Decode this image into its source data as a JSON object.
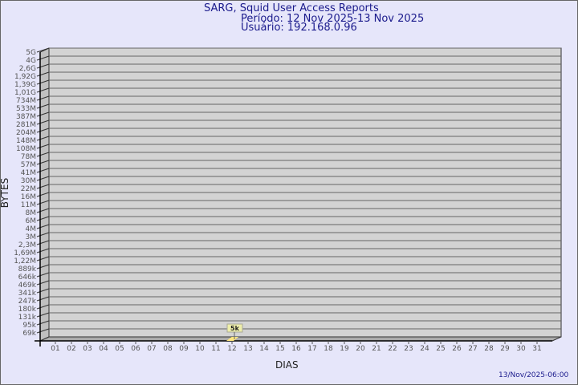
{
  "chart_data": {
    "type": "bar",
    "title": "SARG, Squid User Access Reports",
    "subtitle_period": "Período: 12 Nov 2025-13 Nov 2025",
    "subtitle_user": "Usuário: 192.168.0.96",
    "xlabel": "DIAS",
    "ylabel": "BYTES",
    "y_scale": "log",
    "y_tick_labels": [
      "5G",
      "4G",
      "2,6G",
      "1,92G",
      "1,39G",
      "1,01G",
      "734M",
      "533M",
      "387M",
      "281M",
      "204M",
      "148M",
      "108M",
      "78M",
      "57M",
      "41M",
      "30M",
      "22M",
      "16M",
      "11M",
      "8M",
      "6M",
      "4M",
      "3M",
      "2,3M",
      "1,69M",
      "1,22M",
      "889k",
      "646k",
      "469k",
      "341k",
      "247k",
      "180k",
      "131k",
      "95k",
      "69k"
    ],
    "categories": [
      "01",
      "02",
      "03",
      "04",
      "05",
      "06",
      "07",
      "08",
      "09",
      "10",
      "11",
      "12",
      "13",
      "14",
      "15",
      "16",
      "17",
      "18",
      "19",
      "20",
      "21",
      "22",
      "23",
      "24",
      "25",
      "26",
      "27",
      "28",
      "29",
      "30",
      "31"
    ],
    "bars": [
      {
        "category": "12",
        "value": 5000,
        "label": "5k"
      }
    ],
    "grid": true,
    "colors": {
      "wall": "#d3d3d3",
      "side": "#c0c0c0",
      "bar": "#ffe680",
      "label_bg": "#eeeeaa",
      "text": "#1a1a8c"
    }
  },
  "footer": {
    "timestamp": "13/Nov/2025-06:00"
  }
}
